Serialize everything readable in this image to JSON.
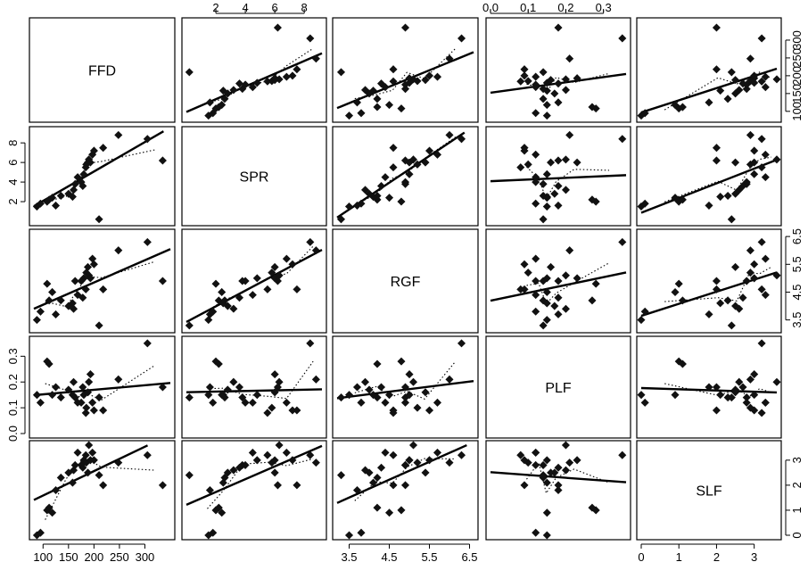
{
  "chart_data": {
    "type": "scatter",
    "subtype": "scatterplot-matrix",
    "variables": [
      "FFD",
      "SPR",
      "RGF",
      "PLF",
      "SLF"
    ],
    "diagonal_labels": [
      "FFD",
      "SPR",
      "RGF",
      "PLF",
      "SLF"
    ],
    "ranges": {
      "FFD": [
        82,
        350
      ],
      "SPR": [
        0.0,
        9.2
      ],
      "RGF": [
        3.2,
        6.6
      ],
      "PLF": [
        0.0,
        0.36
      ],
      "SLF": [
        0.0,
        3.6
      ]
    },
    "tick_labels": {
      "FFD": {
        "values": [
          100,
          150,
          200,
          250,
          300
        ],
        "labels": [
          "100",
          "150",
          "200",
          "250",
          "300"
        ]
      },
      "SPR": {
        "values": [
          2,
          4,
          6,
          8
        ],
        "labels": [
          "2",
          "4",
          "6",
          "8"
        ]
      },
      "RGF": {
        "values": [
          3.5,
          4.5,
          5.5,
          6.5
        ],
        "labels": [
          "3.5",
          "4.5",
          "5.5",
          "6.5"
        ]
      },
      "PLF": {
        "values": [
          0.0,
          0.1,
          0.2,
          0.3
        ],
        "labels": [
          "0.0",
          "0.1",
          "0.2",
          "0.3"
        ]
      },
      "SLF": {
        "values": [
          0,
          1,
          2,
          3
        ],
        "labels": [
          "0",
          "1",
          "2",
          "3"
        ]
      }
    },
    "axis_label_placement": {
      "top": [
        "SPR",
        "PLF"
      ],
      "bottom": [
        "FFD",
        "RGF",
        "SLF"
      ],
      "left": [
        "SPR",
        "PLF"
      ],
      "right": [
        "FFD",
        "RGF",
        "SLF"
      ]
    },
    "observations": {
      "FFD": [
        88,
        95,
        108,
        112,
        118,
        125,
        135,
        150,
        158,
        160,
        163,
        168,
        175,
        178,
        180,
        184,
        185,
        188,
        190,
        193,
        197,
        200,
        210,
        218,
        248,
        305,
        335
      ],
      "SPR": [
        1.5,
        1.8,
        2.0,
        2.2,
        2.4,
        1.6,
        2.6,
        2.8,
        2.5,
        3.2,
        3.8,
        4.5,
        4.0,
        3.6,
        4.8,
        5.5,
        5.8,
        6.0,
        6.3,
        6.0,
        6.8,
        7.2,
        0.2,
        7.5,
        8.8,
        8.4,
        6.2
      ],
      "RGF": [
        3.5,
        3.8,
        4.8,
        4.2,
        4.5,
        3.7,
        4.2,
        4.0,
        4.1,
        3.9,
        4.9,
        4.4,
        4.9,
        4.3,
        5.0,
        4.6,
        5.2,
        5.4,
        5.1,
        5.0,
        5.7,
        5.5,
        3.3,
        4.6,
        6.0,
        6.3,
        4.9
      ],
      "PLF": [
        0.15,
        0.12,
        0.28,
        0.27,
        0.15,
        0.18,
        0.14,
        0.17,
        0.15,
        0.2,
        0.14,
        0.12,
        0.12,
        0.18,
        0.15,
        0.08,
        0.1,
        0.16,
        0.2,
        0.23,
        0.12,
        0.09,
        0.14,
        0.09,
        0.21,
        0.35,
        0.18
      ],
      "SLF": [
        0.0,
        0.1,
        1.0,
        1.1,
        0.9,
        1.8,
        2.3,
        2.5,
        2.1,
        2.6,
        2.8,
        3.3,
        2.8,
        2.7,
        3.0,
        3.2,
        2.9,
        2.5,
        3.6,
        3.0,
        3.3,
        3.0,
        2.4,
        2.0,
        2.9,
        3.2,
        2.0
      ]
    },
    "overlays": {
      "regression_line": {
        "style": "solid",
        "color": "#000000"
      },
      "smoother": {
        "style": "dotted",
        "color": "#000000"
      }
    },
    "grid": false,
    "legend": "none"
  }
}
